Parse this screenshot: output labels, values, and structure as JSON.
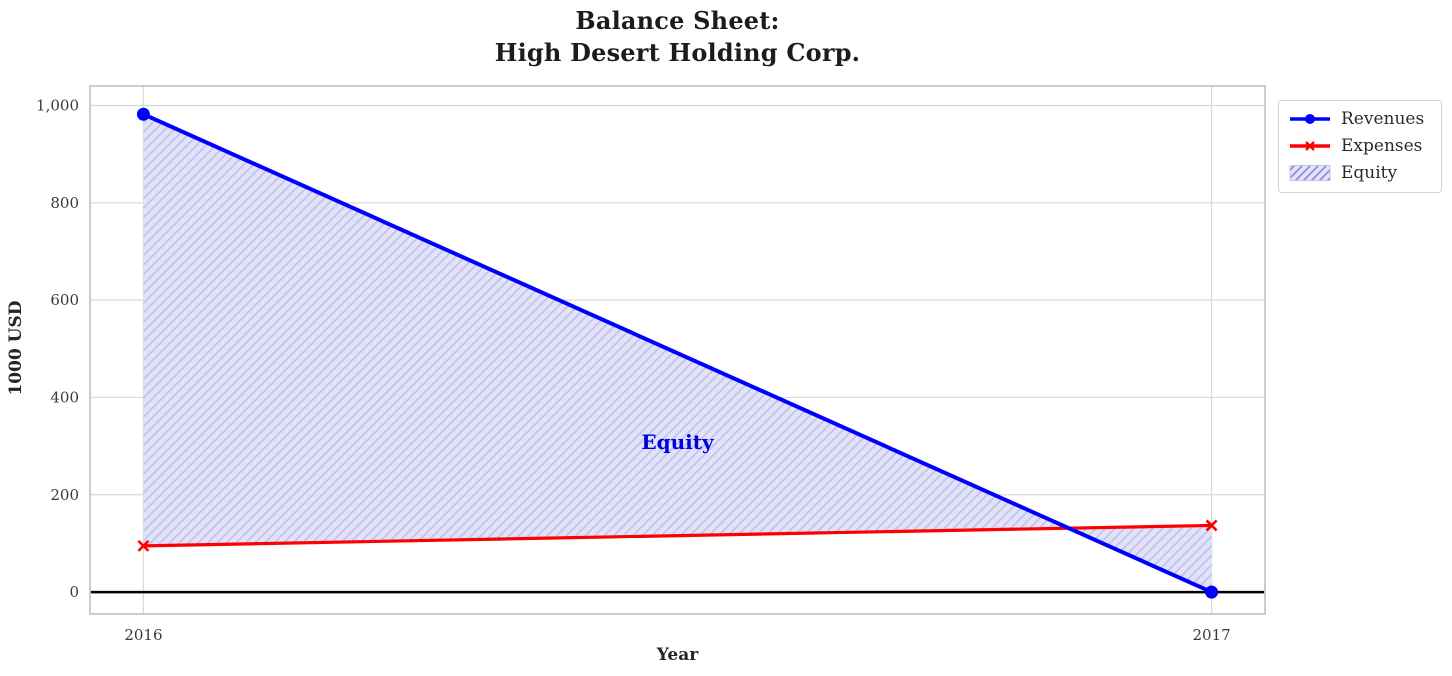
{
  "chart_data": {
    "type": "line",
    "title_lines": [
      "Balance Sheet:",
      "High Desert Holding Corp."
    ],
    "xlabel": "Year",
    "ylabel": "1000 USD",
    "x": [
      2016,
      2017
    ],
    "xtick_labels": [
      "2016",
      "2017"
    ],
    "yticks": [
      0,
      200,
      400,
      600,
      800,
      1000
    ],
    "ytick_labels": [
      "0",
      "200",
      "400",
      "600",
      "800",
      "1,000"
    ],
    "xlim": [
      2015.95,
      2017.05
    ],
    "ylim": [
      -45,
      1040
    ],
    "grid": true,
    "grid_color": "#d9d9d9",
    "border_color": "#c6c6c6",
    "tick_label_color": "#3a3a3a",
    "zero_line_color": "#000000",
    "series": [
      {
        "name": "Revenues",
        "color": "#0000ff",
        "marker": "circle",
        "line_width": 4,
        "values": [
          982,
          0
        ]
      },
      {
        "name": "Expenses",
        "color": "#ff0000",
        "marker": "x",
        "line_width": 3.2,
        "values": [
          95,
          137
        ]
      }
    ],
    "area": {
      "label": "Equity",
      "between": [
        "Revenues",
        "Expenses"
      ],
      "fill_color": "#e2e2f8",
      "hatch_color": "#c3c3ee",
      "hatch": "/",
      "label_color": "#0000e0"
    },
    "legend": {
      "position": "outside-upper-right",
      "entries": [
        "Revenues",
        "Expenses",
        "Equity"
      ]
    }
  }
}
